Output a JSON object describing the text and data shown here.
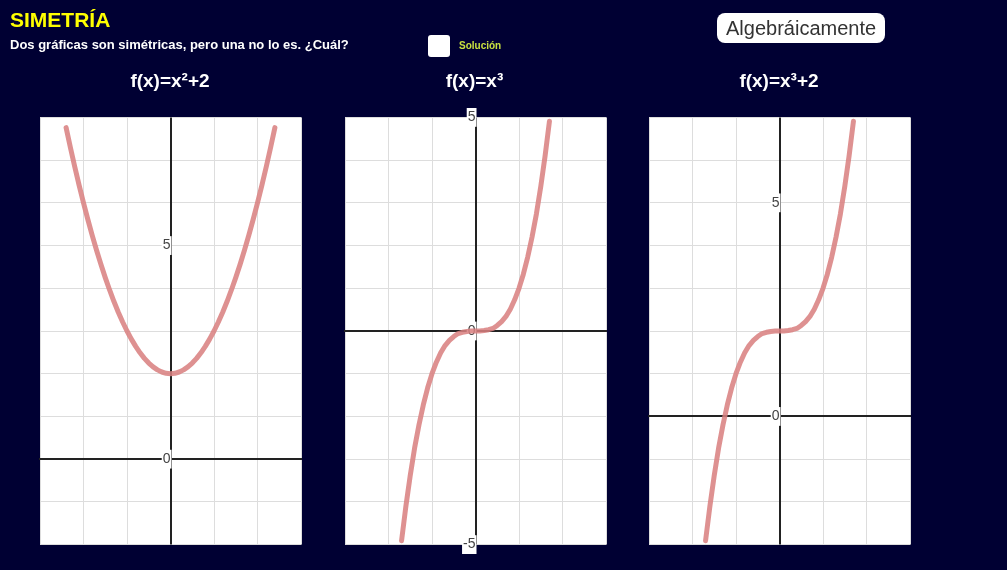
{
  "chart_data": [
    {
      "type": "other",
      "title": "SIMETRÍA",
      "subtitle": "Dos gráficas son simétricas, pero una no lo es. ¿Cuál?",
      "annotations": [
        "Solución",
        "Algebráicamente"
      ]
    },
    {
      "type": "line",
      "title": "f(x)=x²+2",
      "categories": [
        null,
        null,
        null,
        null,
        null,
        null,
        null,
        null,
        null,
        null,
        null,
        null,
        null,
        null,
        null,
        null,
        null,
        null,
        null,
        null,
        null,
        null,
        null,
        null,
        null,
        null,
        null,
        null,
        null,
        null,
        null,
        null,
        null,
        null,
        null,
        null,
        null,
        null,
        null,
        null,
        null,
        null,
        null,
        null,
        null,
        null,
        null,
        null,
        null,
        null,
        null,
        null,
        null,
        null,
        null,
        null,
        null,
        null,
        null,
        null,
        null
      ],
      "ylim": [
        -2,
        8
      ],
      "yticks": [
        {
          "value": -2,
          "label": null
        },
        {
          "value": -1,
          "label": null
        },
        0,
        {
          "value": 1,
          "label": null
        },
        {
          "value": 2,
          "label": null
        },
        {
          "value": 3,
          "label": null
        },
        {
          "value": 4,
          "label": null
        },
        5,
        {
          "value": 6,
          "label": null
        },
        {
          "value": 7,
          "label": null
        },
        {
          "value": 8,
          "label": null
        }
      ],
      "tick_labels": "y",
      "grid": true,
      "marker": "none",
      "line_style": "solid",
      "series": [
        {
          "color": "#d98080",
          "values": [
            null,
            null,
            null,
            null,
            null,
            null,
            7.76,
            7.29,
            6.84,
            6.41,
            6,
            5.61,
            5.24,
            4.89,
            4.56,
            4.25,
            3.96,
            3.69,
            3.44,
            3.21,
            3,
            2.81,
            2.64,
            2.49,
            2.36,
            2.25,
            2.16,
            2.09,
            2.04,
            2.01,
            2,
            2.01,
            2.04,
            2.09,
            2.16,
            2.25,
            2.36,
            2.49,
            2.64,
            2.81,
            3,
            3.21,
            3.44,
            3.69,
            3.96,
            4.25,
            4.56,
            4.89,
            5.24,
            5.61,
            6,
            6.41,
            6.84,
            7.29,
            7.76,
            null,
            null,
            null,
            null,
            null,
            null
          ]
        }
      ]
    },
    {
      "type": "line",
      "title": "f(x)=x³",
      "categories": [
        null,
        null,
        null,
        null,
        null,
        null,
        null,
        null,
        null,
        null,
        null,
        null,
        null,
        null,
        null,
        null,
        null,
        null,
        null,
        null,
        null,
        null,
        null,
        null,
        null,
        null,
        null,
        null,
        null,
        null,
        null,
        null,
        null,
        null,
        null,
        null,
        null,
        null,
        null,
        null,
        null,
        null,
        null,
        null,
        null,
        null,
        null,
        null,
        null,
        null,
        null,
        null,
        null,
        null,
        null,
        null,
        null,
        null,
        null,
        null,
        null
      ],
      "ylim": [
        -5,
        5
      ],
      "yticks": [
        -5,
        {
          "value": -4,
          "label": null
        },
        {
          "value": -3,
          "label": null
        },
        {
          "value": -2,
          "label": null
        },
        {
          "value": -1,
          "label": null
        },
        0,
        {
          "value": 1,
          "label": null
        },
        {
          "value": 2,
          "label": null
        },
        {
          "value": 3,
          "label": null
        },
        {
          "value": 4,
          "label": null
        },
        5
      ],
      "tick_labels": "y",
      "grid": true,
      "marker": "none",
      "line_style": "solid",
      "series": [
        {
          "color": "#d98080",
          "values": [
            null,
            null,
            null,
            null,
            null,
            null,
            null,
            null,
            null,
            null,
            null,
            null,
            null,
            -4.91,
            -4.1,
            -3.38,
            -2.74,
            -2.2,
            -1.73,
            -1.33,
            -1,
            -0.73,
            -0.51,
            -0.34,
            -0.22,
            -0.13,
            -0.06,
            -0.03,
            -0.01,
            0,
            0,
            0,
            0.01,
            0.03,
            0.06,
            0.13,
            0.22,
            0.34,
            0.51,
            0.73,
            1,
            1.33,
            1.73,
            2.2,
            2.74,
            3.38,
            4.1,
            4.91,
            null,
            null,
            null,
            null,
            null,
            null,
            null,
            null,
            null,
            null,
            null,
            null,
            null
          ]
        }
      ]
    },
    {
      "type": "line",
      "title": "f(x)=x³+2",
      "categories": [
        null,
        null,
        null,
        null,
        null,
        null,
        null,
        null,
        null,
        null,
        null,
        null,
        null,
        null,
        null,
        null,
        null,
        null,
        null,
        null,
        null,
        null,
        null,
        null,
        null,
        null,
        null,
        null,
        null,
        null,
        null,
        null,
        null,
        null,
        null,
        null,
        null,
        null,
        null,
        null,
        null,
        null,
        null,
        null,
        null,
        null,
        null,
        null,
        null,
        null,
        null,
        null,
        null,
        null,
        null,
        null,
        null,
        null,
        null,
        null,
        null
      ],
      "ylim": [
        -3,
        7
      ],
      "yticks": [
        {
          "value": -3,
          "label": null
        },
        {
          "value": -2,
          "label": null
        },
        {
          "value": -1,
          "label": null
        },
        0,
        {
          "value": 1,
          "label": null
        },
        {
          "value": 2,
          "label": null
        },
        {
          "value": 3,
          "label": null
        },
        {
          "value": 4,
          "label": null
        },
        5,
        {
          "value": 6,
          "label": null
        },
        {
          "value": 7,
          "label": null
        }
      ],
      "tick_labels": "y",
      "grid": true,
      "marker": "none",
      "line_style": "solid",
      "series": [
        {
          "color": "#d98080",
          "values": [
            null,
            null,
            null,
            null,
            null,
            null,
            null,
            null,
            null,
            null,
            null,
            null,
            null,
            -2.91,
            -2.1,
            -1.38,
            -0.74,
            -0.2,
            0.27,
            0.67,
            1,
            1.27,
            1.49,
            1.66,
            1.78,
            1.87,
            1.94,
            1.97,
            1.99,
            2,
            2,
            2,
            2.01,
            2.03,
            2.06,
            2.13,
            2.22,
            2.34,
            2.51,
            2.73,
            3,
            3.33,
            3.73,
            4.2,
            4.74,
            5.38,
            6.1,
            6.91,
            null,
            null,
            null,
            null,
            null,
            null,
            null,
            null,
            null,
            null,
            null,
            null,
            null
          ]
        }
      ]
    }
  ]
}
